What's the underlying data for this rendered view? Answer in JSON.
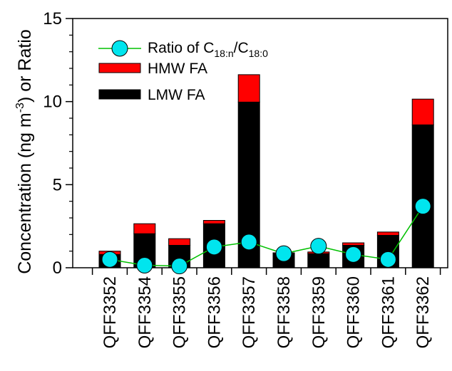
{
  "chart_data": {
    "type": "bar",
    "stacked": true,
    "categories": [
      "QFF3352",
      "QFF3354",
      "QFF3355",
      "QFF3356",
      "QFF3357",
      "QFF3358",
      "QFF3359",
      "QFF3360",
      "QFF3361",
      "QFF3362"
    ],
    "series": [
      {
        "name": "LMW FA",
        "color": "#000000",
        "values": [
          0.8,
          2.05,
          1.35,
          2.65,
          9.97,
          0.85,
          0.85,
          1.35,
          1.95,
          8.6
        ]
      },
      {
        "name": "HMW FA",
        "color": "#ff0000",
        "values": [
          0.2,
          0.6,
          0.4,
          0.2,
          1.65,
          0.05,
          0.1,
          0.15,
          0.2,
          1.55
        ]
      }
    ],
    "line_series": {
      "name_prefix": "Ratio of C",
      "name_sub1": "18:n",
      "name_mid": "/C",
      "name_sub2": "18:0",
      "marker_color": "#00e5ee",
      "line_color": "#00c000",
      "values": [
        0.5,
        0.15,
        0.1,
        1.25,
        1.55,
        0.85,
        1.3,
        0.8,
        0.5,
        3.7
      ]
    },
    "ylabel_main": "Concentration (ng m",
    "ylabel_sup": "-3",
    "ylabel_end": ") or Ratio",
    "ylim": [
      0,
      15
    ],
    "yticks": [
      "0",
      "5",
      "10",
      "15"
    ],
    "legend_position": "top-left"
  }
}
